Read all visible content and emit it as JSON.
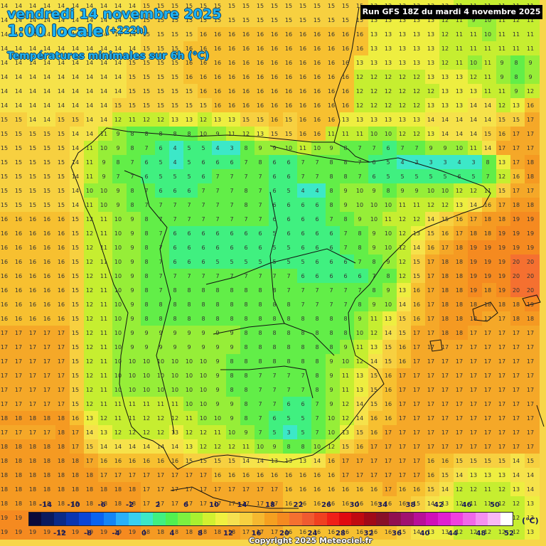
{
  "header": {
    "date": "vendredi 14 novembre 2025",
    "time": "1:00 locale",
    "lead": "(+222h)",
    "variable": "Températures minimales sur 6h (°C)",
    "run": "Run GFS 18Z du mardi 4 novembre 2025"
  },
  "legend": {
    "unit": "(°C)",
    "top_labels": [
      "-14",
      "-10",
      "-6",
      "-2",
      "2",
      "6",
      "10",
      "14",
      "18",
      "22",
      "26",
      "30",
      "34",
      "38",
      "42",
      "46",
      "50"
    ],
    "bottom_labels": [
      "-12",
      "-8",
      "-4",
      "0",
      "4",
      "8",
      "12",
      "16",
      "20",
      "24",
      "28",
      "32",
      "36",
      "40",
      "44",
      "48",
      "52"
    ],
    "colors": [
      "#0a0a3a",
      "#0a1a5e",
      "#0b2a87",
      "#0a35b0",
      "#0b45d6",
      "#0a63f0",
      "#1485f5",
      "#2ab0f8",
      "#38d0f0",
      "#3ce8c8",
      "#40f080",
      "#50f050",
      "#7cf040",
      "#a8f030",
      "#d2f030",
      "#f0f040",
      "#f5e050",
      "#f7d040",
      "#f5b830",
      "#f5a020",
      "#f58a20",
      "#f57030",
      "#f05a30",
      "#f04020",
      "#f02018",
      "#e00a10",
      "#c00a10",
      "#a00a18",
      "#881028",
      "#901050",
      "#a01070",
      "#b81098",
      "#d010b8",
      "#e020d0",
      "#f040e0",
      "#f068e8",
      "#f590f0",
      "#f8b8f5",
      "#ffffff"
    ]
  },
  "copyright": "Copyright 2025 Meteociel.fr",
  "map": {
    "cols": 38,
    "rows": 38,
    "spacing": 20,
    "values": [
      "14 14 14 14 14 14 14 14 14 14 15 15 15 15 15 15 15 15 15 15 15 15 15 15 15 15 13 13 13 13 13 13 11 11 11 11 11 11",
      "14 14 14 14 14 14 14 14 14 14 15 15 15 15 15 15 15 15 15 15 15 15 15 15 15 15 13 13 13 13 13 12 11 9 10 11 12 11",
      "14 14 14 14 14 14 14 14 14 14 15 15 15 15 16 16 16 16 16 16 16 16 16 16 16 16 13 13 13 13 13 12 11 11 10 11 11 11",
      "14 14 14 14 14 14 14 14 14 14 15 15 15 16 16 16 16 16 16 16 16 16 16 16 16 16 13 13 13 13 13 12 11 11 11 11 11 11",
      "14 14 14 14 14 14 14 14 14 15 15 15 15 16 16 16 16 16 16 16 16 16 16 16 16 13 13 13 13 13 13 12 11 10 11 9 8 9",
      "14 14 14 14 14 14 14 14 14 15 15 15 15 16 16 16 16 16 16 16 16 16 16 16 16 12 12 12 12 12 13 13 13 12 11 9 8 9",
      "14 14 14 14 14 14 14 14 14 15 15 15 15 15 16 16 16 16 16 16 16 16 16 16 16 12 12 12 12 12 12 13 13 13 11 11 9 12",
      "14 14 14 14 14 14 14 14 15 15 15 15 15 15 15 16 16 16 16 16 16 16 16 16 16 12 12 12 12 12 13 13 13 14 14 12 13 16",
      "15 15 14 14 15 15 14 14 12 11 12 12 13 13 12 13 13 15 15 16 15 16 16 16 13 13 13 13 13 13 14 14 14 14 14 15 15 17",
      "15 15 15 15 15 14 14 11 9 8 8 8 8 8 10 9 11 12 13 15 15 16 16 11 11 11 10 10 12 12 13 14 14 14 15 16 17 17",
      "15 15 15 15 15 14 11 10 9 8 7 6 4 5 5 4 3 8 9 9 10 11 10 9 8 7 7 6 7 7 9 9 10 11 14 17 17 17",
      "15 15 15 15 15 14 11 9 8 7 6 5 4 5 6 6 6 7 8 6 6 7 7 8 8 7 6 5 4 3 3 3 4 3 8 13 17 18",
      "15 15 15 15 15 14 11 9 7 7 6 5 5 5 6 7 7 7 7 6 6 7 7 8 8 7 6 5 5 5 5 5 6 5 7 12 16 18",
      "15 15 15 15 15 14 10 10 9 8 7 6 6 6 7 7 7 8 7 6 5 4 4 8 9 10 9 8 9 9 10 10 12 12 11 15 17 17",
      "15 15 15 15 15 14 11 10 9 8 7 7 7 7 7 7 7 8 7 6 6 6 6 8 9 10 10 10 11 11 12 12 13 14 16 17 18 18",
      "16 16 16 16 16 15 12 11 10 9 8 7 7 7 7 7 7 7 7 6 6 6 6 7 8 9 10 11 12 12 14 15 16 17 18 18 19 19",
      "16 16 16 16 16 15 12 11 10 9 8 7 6 6 6 6 6 6 6 5 6 6 6 6 7 8 9 10 12 13 15 16 17 18 18 19 19 19",
      "16 16 16 16 16 15 12 11 10 9 8 7 6 6 6 6 6 6 6 5 5 6 6 6 7 8 9 10 12 14 16 17 18 19 19 19 19 19",
      "16 16 16 16 16 15 12 11 10 9 8 7 6 6 6 5 5 5 5 5 5 5 6 6 6 7 8 9 12 15 17 18 18 19 19 19 20 20",
      "16 16 16 16 16 15 12 11 10 9 8 7 7 7 7 7 7 7 7 7 7 6 6 6 6 6 7 8 12 15 17 18 18 19 19 19 20 20",
      "16 16 16 16 16 15 12 11 10 9 8 7 8 8 8 8 8 8 8 8 7 7 7 7 7 7 8 9 13 16 17 18 18 19 18 19 20 20",
      "16 16 16 16 16 15 12 11 10 9 8 8 8 8 8 8 8 8 8 8 8 7 7 7 7 8 9 10 14 16 17 18 18 18 18 18 18 19",
      "16 16 16 16 16 15 12 11 10 9 8 8 8 8 8 8 8 8 8 8 8 8 8 8 8 9 11 13 15 16 17 18 18 18 17 17 18 18",
      "17 17 17 17 17 15 12 11 10 9 9 9 9 9 9 9 9 8 8 8 8 8 8 8 8 10 12 14 15 17 17 18 18 17 17 17 17 17",
      "17 17 17 17 17 15 12 11 10 9 9 9 9 9 9 9 9 8 8 8 8 8 8 8 9 11 13 15 16 17 17 17 17 17 17 17 17 17",
      "17 17 17 17 17 15 12 11 10 10 10 10 10 10 10 9 8 8 8 8 8 8 8 9 10 12 14 15 16 17 17 17 17 17 17 17 17 17",
      "17 17 17 17 17 15 12 11 10 10 10 10 10 10 10 9 8 8 7 7 7 7 8 9 11 13 15 16 17 17 17 17 17 17 17 17 17 17",
      "17 17 17 17 17 15 12 11 10 10 10 10 10 10 10 9 8 8 7 7 7 7 8 9 11 13 15 16 17 17 17 17 17 17 17 17 17 17",
      "17 17 17 17 17 15 12 11 11 11 11 11 11 10 10 9 9 8 7 7 6 6 7 9 12 14 15 16 17 17 17 17 17 17 17 17 17 17",
      "18 18 18 18 18 16 13 12 11 11 12 12 12 11 10 10 9 8 7 6 5 5 7 10 12 14 16 16 17 17 17 17 17 17 17 17 17 17",
      "17 17 17 17 18 17 14 13 12 12 12 12 13 12 12 11 10 9 7 5 3 5 7 10 13 15 16 17 17 17 17 17 17 17 17 17 17 17",
      "18 18 18 18 18 17 15 14 14 14 14 14 14 13 12 12 12 11 10 9 8 8 10 12 15 16 17 17 17 17 17 17 17 17 17 17 17 17",
      "18 18 18 18 18 18 17 16 16 16 16 16 16 15 15 15 15 14 14 13 13 13 14 16 17 17 17 17 17 17 16 16 15 15 15 15 14 15",
      "18 18 18 18 18 18 18 17 17 17 17 17 17 17 17 16 16 16 16 16 16 16 16 16 17 17 17 17 17 17 16 15 14 13 13 13 14 14",
      "18 18 18 18 18 18 18 18 18 18 17 17 17 17 17 17 17 17 17 17 16 16 16 16 16 16 16 17 16 16 15 14 12 12 11 12 13 14",
      "18 18 18 18 18 18 18 18 18 18 17 17 17 17 17 17 17 17 17 17 16 16 16 16 16 16 16 16 16 15 14 13 12 11 11 12 12 13",
      "19 19 19 19 19 19 19 19 19 19 18 18 18 18 18 18 18 17 17 17 16 16 16 16 16 16 16 16 15 14 13 12 12 11 11 12 12 13",
      "19 19 19 19 19 19 19 19 19 19 18 18 18 18 18 18 18 17 17 17 16 16 16 16 16 16 16 16 15 14 13 13 12 12 12 12 12 13"
    ]
  }
}
